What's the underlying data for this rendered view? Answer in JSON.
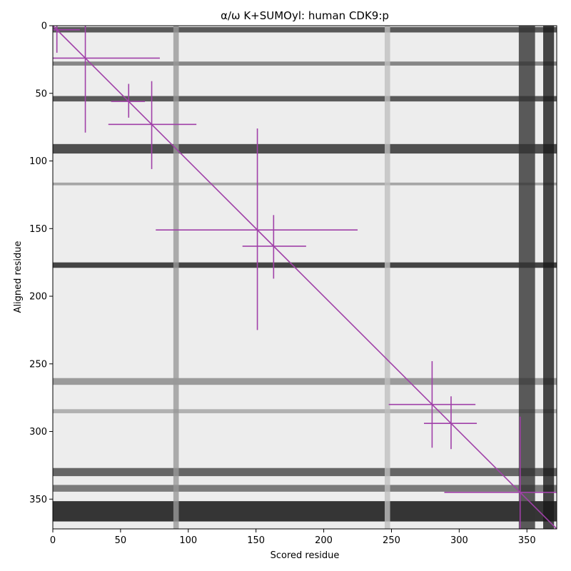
{
  "chart_data": {
    "type": "heatmap",
    "title": "α/ω K+SUMOyl: human CDK9:p",
    "xlabel": "Scored residue",
    "ylabel": "Aligned residue",
    "xlim": [
      0,
      372
    ],
    "ylim": [
      372,
      0
    ],
    "x_ticks": [
      0,
      50,
      100,
      150,
      200,
      250,
      300,
      350
    ],
    "y_ticks": [
      0,
      50,
      100,
      150,
      200,
      250,
      300,
      350
    ],
    "colormap": "gray",
    "colors": {
      "marker": "#a040a8",
      "frame": "#000000"
    },
    "background_value": 0.93,
    "dark_bands_rows": [
      {
        "center": 3,
        "width": 4,
        "level": 0.25
      },
      {
        "center": 28,
        "width": 3,
        "level": 0.45
      },
      {
        "center": 54,
        "width": 4,
        "level": 0.25
      },
      {
        "center": 91,
        "width": 7,
        "level": 0.2
      },
      {
        "center": 117,
        "width": 2,
        "level": 0.6
      },
      {
        "center": 177,
        "width": 4,
        "level": 0.15
      },
      {
        "center": 263,
        "width": 5,
        "level": 0.55
      },
      {
        "center": 285,
        "width": 3,
        "level": 0.65
      },
      {
        "center": 330,
        "width": 6,
        "level": 0.3
      },
      {
        "center": 342,
        "width": 5,
        "level": 0.4
      },
      {
        "center": 359,
        "width": 15,
        "level": 0.08
      }
    ],
    "dark_bands_cols": [
      {
        "center": 91,
        "width": 4,
        "level": 0.6
      },
      {
        "center": 247,
        "width": 4,
        "level": 0.75
      },
      {
        "center": 350,
        "width": 12,
        "level": 0.2
      },
      {
        "center": 366,
        "width": 8,
        "level": 0.1
      }
    ],
    "diagonal": {
      "from": [
        0,
        0
      ],
      "to": [
        372,
        372
      ]
    },
    "markers": [
      {
        "x": 3,
        "y": 3,
        "x_err": [
          0,
          20
        ],
        "y_err": [
          0,
          20
        ]
      },
      {
        "x": 24,
        "y": 24,
        "x_err": [
          0,
          79
        ],
        "y_err": [
          0,
          79
        ]
      },
      {
        "x": 56,
        "y": 56,
        "x_err": [
          43,
          68
        ],
        "y_err": [
          43,
          68
        ]
      },
      {
        "x": 73,
        "y": 73,
        "x_err": [
          41,
          106
        ],
        "y_err": [
          41,
          106
        ]
      },
      {
        "x": 151,
        "y": 151,
        "x_err": [
          76,
          225
        ],
        "y_err": [
          76,
          225
        ]
      },
      {
        "x": 163,
        "y": 163,
        "x_err": [
          140,
          187
        ],
        "y_err": [
          140,
          187
        ]
      },
      {
        "x": 280,
        "y": 280,
        "x_err": [
          248,
          312
        ],
        "y_err": [
          248,
          312
        ]
      },
      {
        "x": 294,
        "y": 294,
        "x_err": [
          274,
          313
        ],
        "y_err": [
          274,
          313
        ]
      },
      {
        "x": 345,
        "y": 345,
        "x_err": [
          289,
          372
        ],
        "y_err": [
          289,
          372
        ]
      }
    ]
  }
}
